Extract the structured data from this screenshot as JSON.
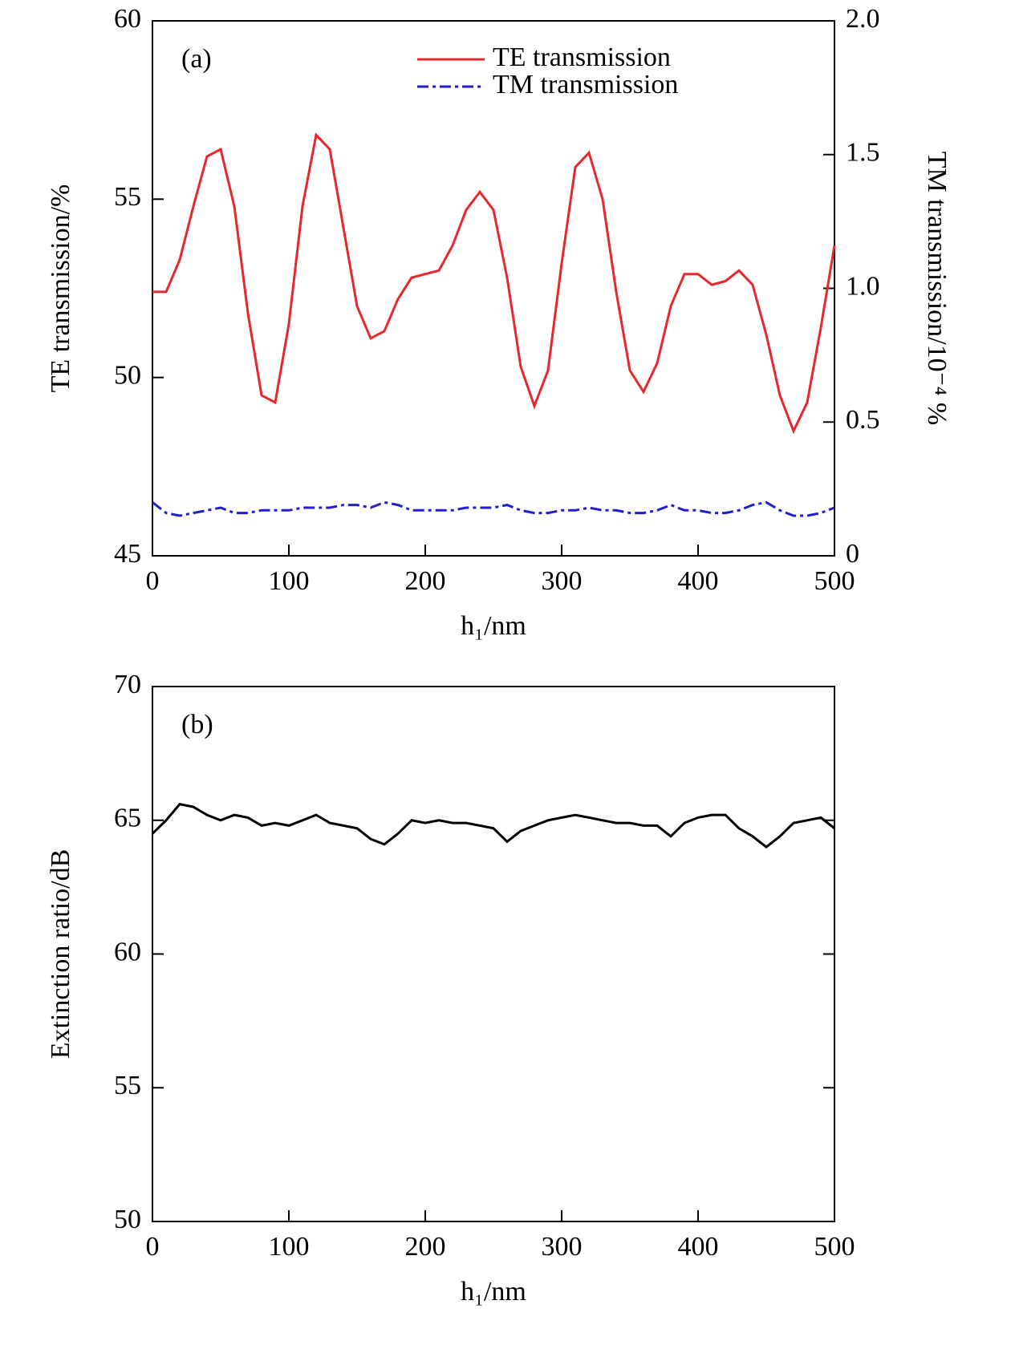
{
  "chart_data": [
    {
      "type": "line",
      "annotation": "(a)",
      "xlabel": "h₁/nm",
      "ylabel": "TE transmission/%",
      "y2label": "TM transmission/10⁻⁴ %",
      "x": [
        0,
        10,
        20,
        30,
        40,
        50,
        60,
        70,
        80,
        90,
        100,
        110,
        120,
        130,
        140,
        150,
        160,
        170,
        180,
        190,
        200,
        210,
        220,
        230,
        240,
        250,
        260,
        270,
        280,
        290,
        300,
        310,
        320,
        330,
        340,
        350,
        360,
        370,
        380,
        390,
        400,
        410,
        420,
        430,
        440,
        450,
        460,
        470,
        480,
        490,
        500
      ],
      "xlim": [
        0,
        500
      ],
      "xticks": [
        0,
        100,
        200,
        300,
        400,
        500
      ],
      "ylim": [
        45,
        60
      ],
      "yticks": [
        45,
        50,
        55,
        60
      ],
      "y2lim": [
        0,
        2
      ],
      "y2ticks": [
        0,
        0.5,
        {
          "value": 1,
          "label": "1.0"
        },
        1.5,
        {
          "value": 2,
          "label": "2.0"
        }
      ],
      "legend": "upper right",
      "series": [
        {
          "name": "TE transmission",
          "color": "#e8262b",
          "linestyle": "solid",
          "values": [
            52.4,
            52.4,
            53.3,
            54.8,
            56.2,
            56.4,
            54.8,
            51.8,
            49.5,
            49.3,
            51.5,
            54.8,
            56.8,
            56.4,
            54.2,
            52.0,
            51.1,
            51.3,
            52.2,
            52.8,
            52.9,
            53.0,
            53.7,
            54.7,
            55.2,
            54.7,
            52.8,
            50.3,
            49.2,
            50.2,
            53.2,
            55.9,
            56.3,
            55.0,
            52.4,
            50.2,
            49.6,
            50.4,
            52.0,
            52.9,
            52.9,
            52.6,
            52.7,
            53.0,
            52.6,
            51.2,
            49.5,
            48.5,
            49.3,
            51.4,
            53.7
          ]
        },
        {
          "name": "TM transmission",
          "color": "#1f1fd0",
          "linestyle": "dashdot",
          "axis": "y2",
          "values": [
            0.2,
            0.16,
            0.15,
            0.16,
            0.17,
            0.18,
            0.16,
            0.16,
            0.17,
            0.17,
            0.17,
            0.18,
            0.18,
            0.18,
            0.19,
            0.19,
            0.18,
            0.2,
            0.19,
            0.17,
            0.17,
            0.17,
            0.17,
            0.18,
            0.18,
            0.18,
            0.19,
            0.17,
            0.16,
            0.16,
            0.17,
            0.17,
            0.18,
            0.17,
            0.17,
            0.16,
            0.16,
            0.17,
            0.19,
            0.17,
            0.17,
            0.16,
            0.16,
            0.17,
            0.19,
            0.2,
            0.17,
            0.15,
            0.15,
            0.16,
            0.18
          ]
        }
      ]
    },
    {
      "type": "line",
      "annotation": "(b)",
      "xlabel": "h₁/nm",
      "ylabel": "Extinction ratio/dB",
      "x": [
        0,
        10,
        20,
        30,
        40,
        50,
        60,
        70,
        80,
        90,
        100,
        110,
        120,
        130,
        140,
        150,
        160,
        170,
        180,
        190,
        200,
        210,
        220,
        230,
        240,
        250,
        260,
        270,
        280,
        290,
        300,
        310,
        320,
        330,
        340,
        350,
        360,
        370,
        380,
        390,
        400,
        410,
        420,
        430,
        440,
        450,
        460,
        470,
        480,
        490,
        500
      ],
      "xlim": [
        0,
        500
      ],
      "xticks": [
        0,
        100,
        200,
        300,
        400,
        500
      ],
      "ylim": [
        50,
        70
      ],
      "yticks": [
        50,
        55,
        60,
        65,
        70
      ],
      "series": [
        {
          "color": "#000000",
          "linestyle": "solid",
          "values": [
            64.5,
            65.0,
            65.6,
            65.5,
            65.2,
            65.0,
            65.2,
            65.1,
            64.8,
            64.9,
            64.8,
            65.0,
            65.2,
            64.9,
            64.8,
            64.7,
            64.3,
            64.1,
            64.5,
            65.0,
            64.9,
            65.0,
            64.9,
            64.9,
            64.8,
            64.7,
            64.2,
            64.6,
            64.8,
            65.0,
            65.1,
            65.2,
            65.1,
            65.0,
            64.9,
            64.9,
            64.8,
            64.8,
            64.4,
            64.9,
            65.1,
            65.2,
            65.2,
            64.7,
            64.4,
            64.0,
            64.4,
            64.9,
            65.0,
            65.1,
            64.7
          ]
        }
      ]
    }
  ]
}
